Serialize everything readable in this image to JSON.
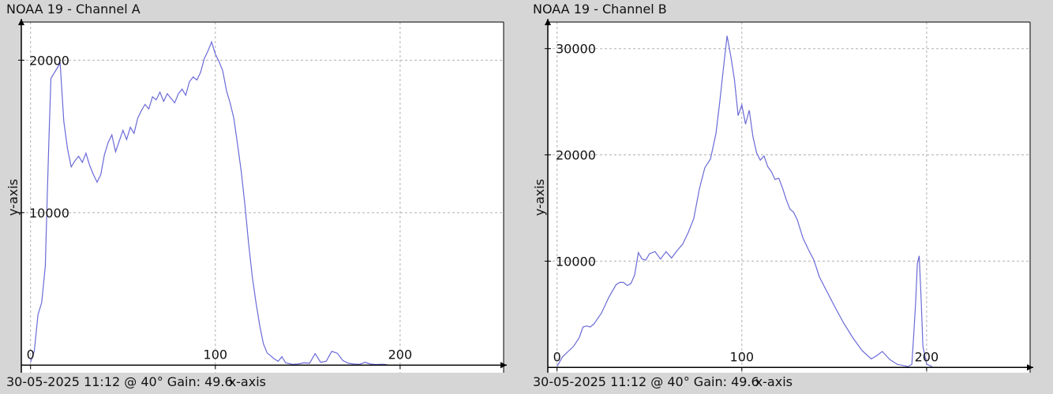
{
  "chart_data": [
    {
      "type": "line",
      "title": "NOAA 19 - Channel A",
      "footer": "30-05-2025 11:12 @ 40° Gain: 49.6",
      "xlabel": "x-axis",
      "ylabel": "y-axis",
      "xlim": [
        -5,
        256
      ],
      "ylim": [
        -500,
        22500
      ],
      "x_ticks": [
        0,
        100,
        200
      ],
      "y_ticks": [
        10000,
        20000
      ],
      "grid": true,
      "series": [
        {
          "color": "#6a6ad8",
          "x": [
            0,
            2,
            4,
            6,
            8,
            9,
            10,
            11,
            12,
            14,
            16,
            18,
            20,
            22,
            24,
            26,
            28,
            30,
            32,
            34,
            36,
            38,
            40,
            42,
            44,
            46,
            48,
            50,
            52,
            54,
            56,
            58,
            60,
            62,
            64,
            66,
            68,
            70,
            72,
            74,
            76,
            78,
            80,
            82,
            84,
            86,
            88,
            90,
            92,
            94,
            96,
            98,
            100,
            102,
            104,
            106,
            108,
            110,
            112,
            114,
            116,
            118,
            120,
            122,
            124,
            126,
            128,
            130,
            132,
            134,
            136,
            138,
            140,
            142,
            145,
            148,
            151,
            154,
            157,
            160,
            163,
            166,
            169,
            172,
            175,
            178,
            181,
            184,
            187,
            190,
            193
          ],
          "values": [
            200,
            900,
            3300,
            4100,
            6500,
            11000,
            15000,
            18800,
            19000,
            19400,
            19800,
            16000,
            14200,
            13000,
            13400,
            13700,
            13300,
            13900,
            13100,
            12500,
            12000,
            12500,
            13800,
            14600,
            15100,
            14000,
            14700,
            15400,
            14800,
            15600,
            15200,
            16200,
            16700,
            17100,
            16800,
            17600,
            17400,
            17900,
            17300,
            17800,
            17500,
            17200,
            17800,
            18100,
            17700,
            18600,
            18900,
            18700,
            19200,
            20100,
            20600,
            21200,
            20400,
            19900,
            19300,
            18000,
            17200,
            16200,
            14500,
            12700,
            10500,
            8000,
            5800,
            4100,
            2600,
            1400,
            800,
            600,
            400,
            250,
            550,
            150,
            100,
            50,
            80,
            150,
            120,
            750,
            180,
            260,
            900,
            780,
            300,
            120,
            70,
            50,
            180,
            70,
            40,
            60,
            30
          ]
        }
      ]
    },
    {
      "type": "line",
      "title": "NOAA 19 - Channel B",
      "footer": "30-05-2025 11:12 @ 40° Gain: 49.6",
      "xlabel": "x-axis",
      "ylabel": "y-axis",
      "xlim": [
        -5,
        256
      ],
      "ylim": [
        -500,
        32500
      ],
      "x_ticks": [
        0,
        100,
        200
      ],
      "y_ticks": [
        10000,
        20000,
        30000
      ],
      "grid": true,
      "series": [
        {
          "color": "#6a6ad8",
          "x": [
            0,
            3,
            6,
            9,
            12,
            14,
            16,
            18,
            20,
            24,
            28,
            32,
            34,
            36,
            38,
            40,
            42,
            44,
            46,
            48,
            50,
            53,
            56,
            59,
            62,
            65,
            68,
            71,
            74,
            77,
            80,
            83,
            86,
            88,
            90,
            92,
            94,
            96,
            98,
            100,
            102,
            104,
            106,
            108,
            110,
            112,
            114,
            116,
            118,
            120,
            122,
            124,
            126,
            128,
            130,
            133,
            136,
            139,
            142,
            145,
            150,
            155,
            160,
            165,
            170,
            173,
            176,
            180,
            184,
            188,
            190,
            192,
            193,
            194,
            195,
            196,
            197,
            198,
            200,
            203
          ],
          "values": [
            100,
            1000,
            1500,
            2000,
            2800,
            3800,
            3900,
            3800,
            4100,
            5100,
            6600,
            7800,
            8000,
            8000,
            7700,
            7900,
            8700,
            10800,
            10200,
            10100,
            10700,
            10900,
            10200,
            10900,
            10300,
            11000,
            11600,
            12700,
            14000,
            16800,
            18800,
            19600,
            22000,
            24900,
            28100,
            31200,
            29300,
            27100,
            23700,
            24700,
            22900,
            24200,
            21700,
            20200,
            19500,
            19900,
            18900,
            18400,
            17700,
            17800,
            16900,
            15800,
            14900,
            14600,
            13900,
            12200,
            11100,
            10100,
            8500,
            7500,
            5800,
            4200,
            2800,
            1600,
            800,
            1100,
            1500,
            750,
            300,
            150,
            80,
            300,
            3000,
            6000,
            9800,
            10500,
            6500,
            2000,
            300,
            80
          ]
        }
      ]
    }
  ]
}
